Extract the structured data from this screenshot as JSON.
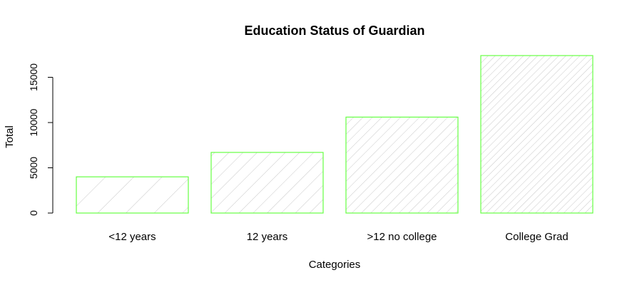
{
  "chart_data": {
    "type": "bar",
    "title": "Education Status of Guardian",
    "xlabel": "Categories",
    "ylabel": "Total",
    "categories": [
      "<12 years",
      "12 years",
      ">12 no college",
      "College Grad"
    ],
    "values": [
      4000,
      6700,
      10600,
      17400
    ],
    "ylim": [
      0,
      17400
    ],
    "yticks": [
      0,
      5000,
      10000,
      15000
    ],
    "grid": false,
    "legend": "none",
    "bar_fill": "hatched",
    "hatch_densities": [
      1,
      2,
      3,
      4
    ],
    "colors": {
      "bar_border": "#66ff44",
      "hatch": "#c8c8c8",
      "axis": "#000000"
    }
  }
}
